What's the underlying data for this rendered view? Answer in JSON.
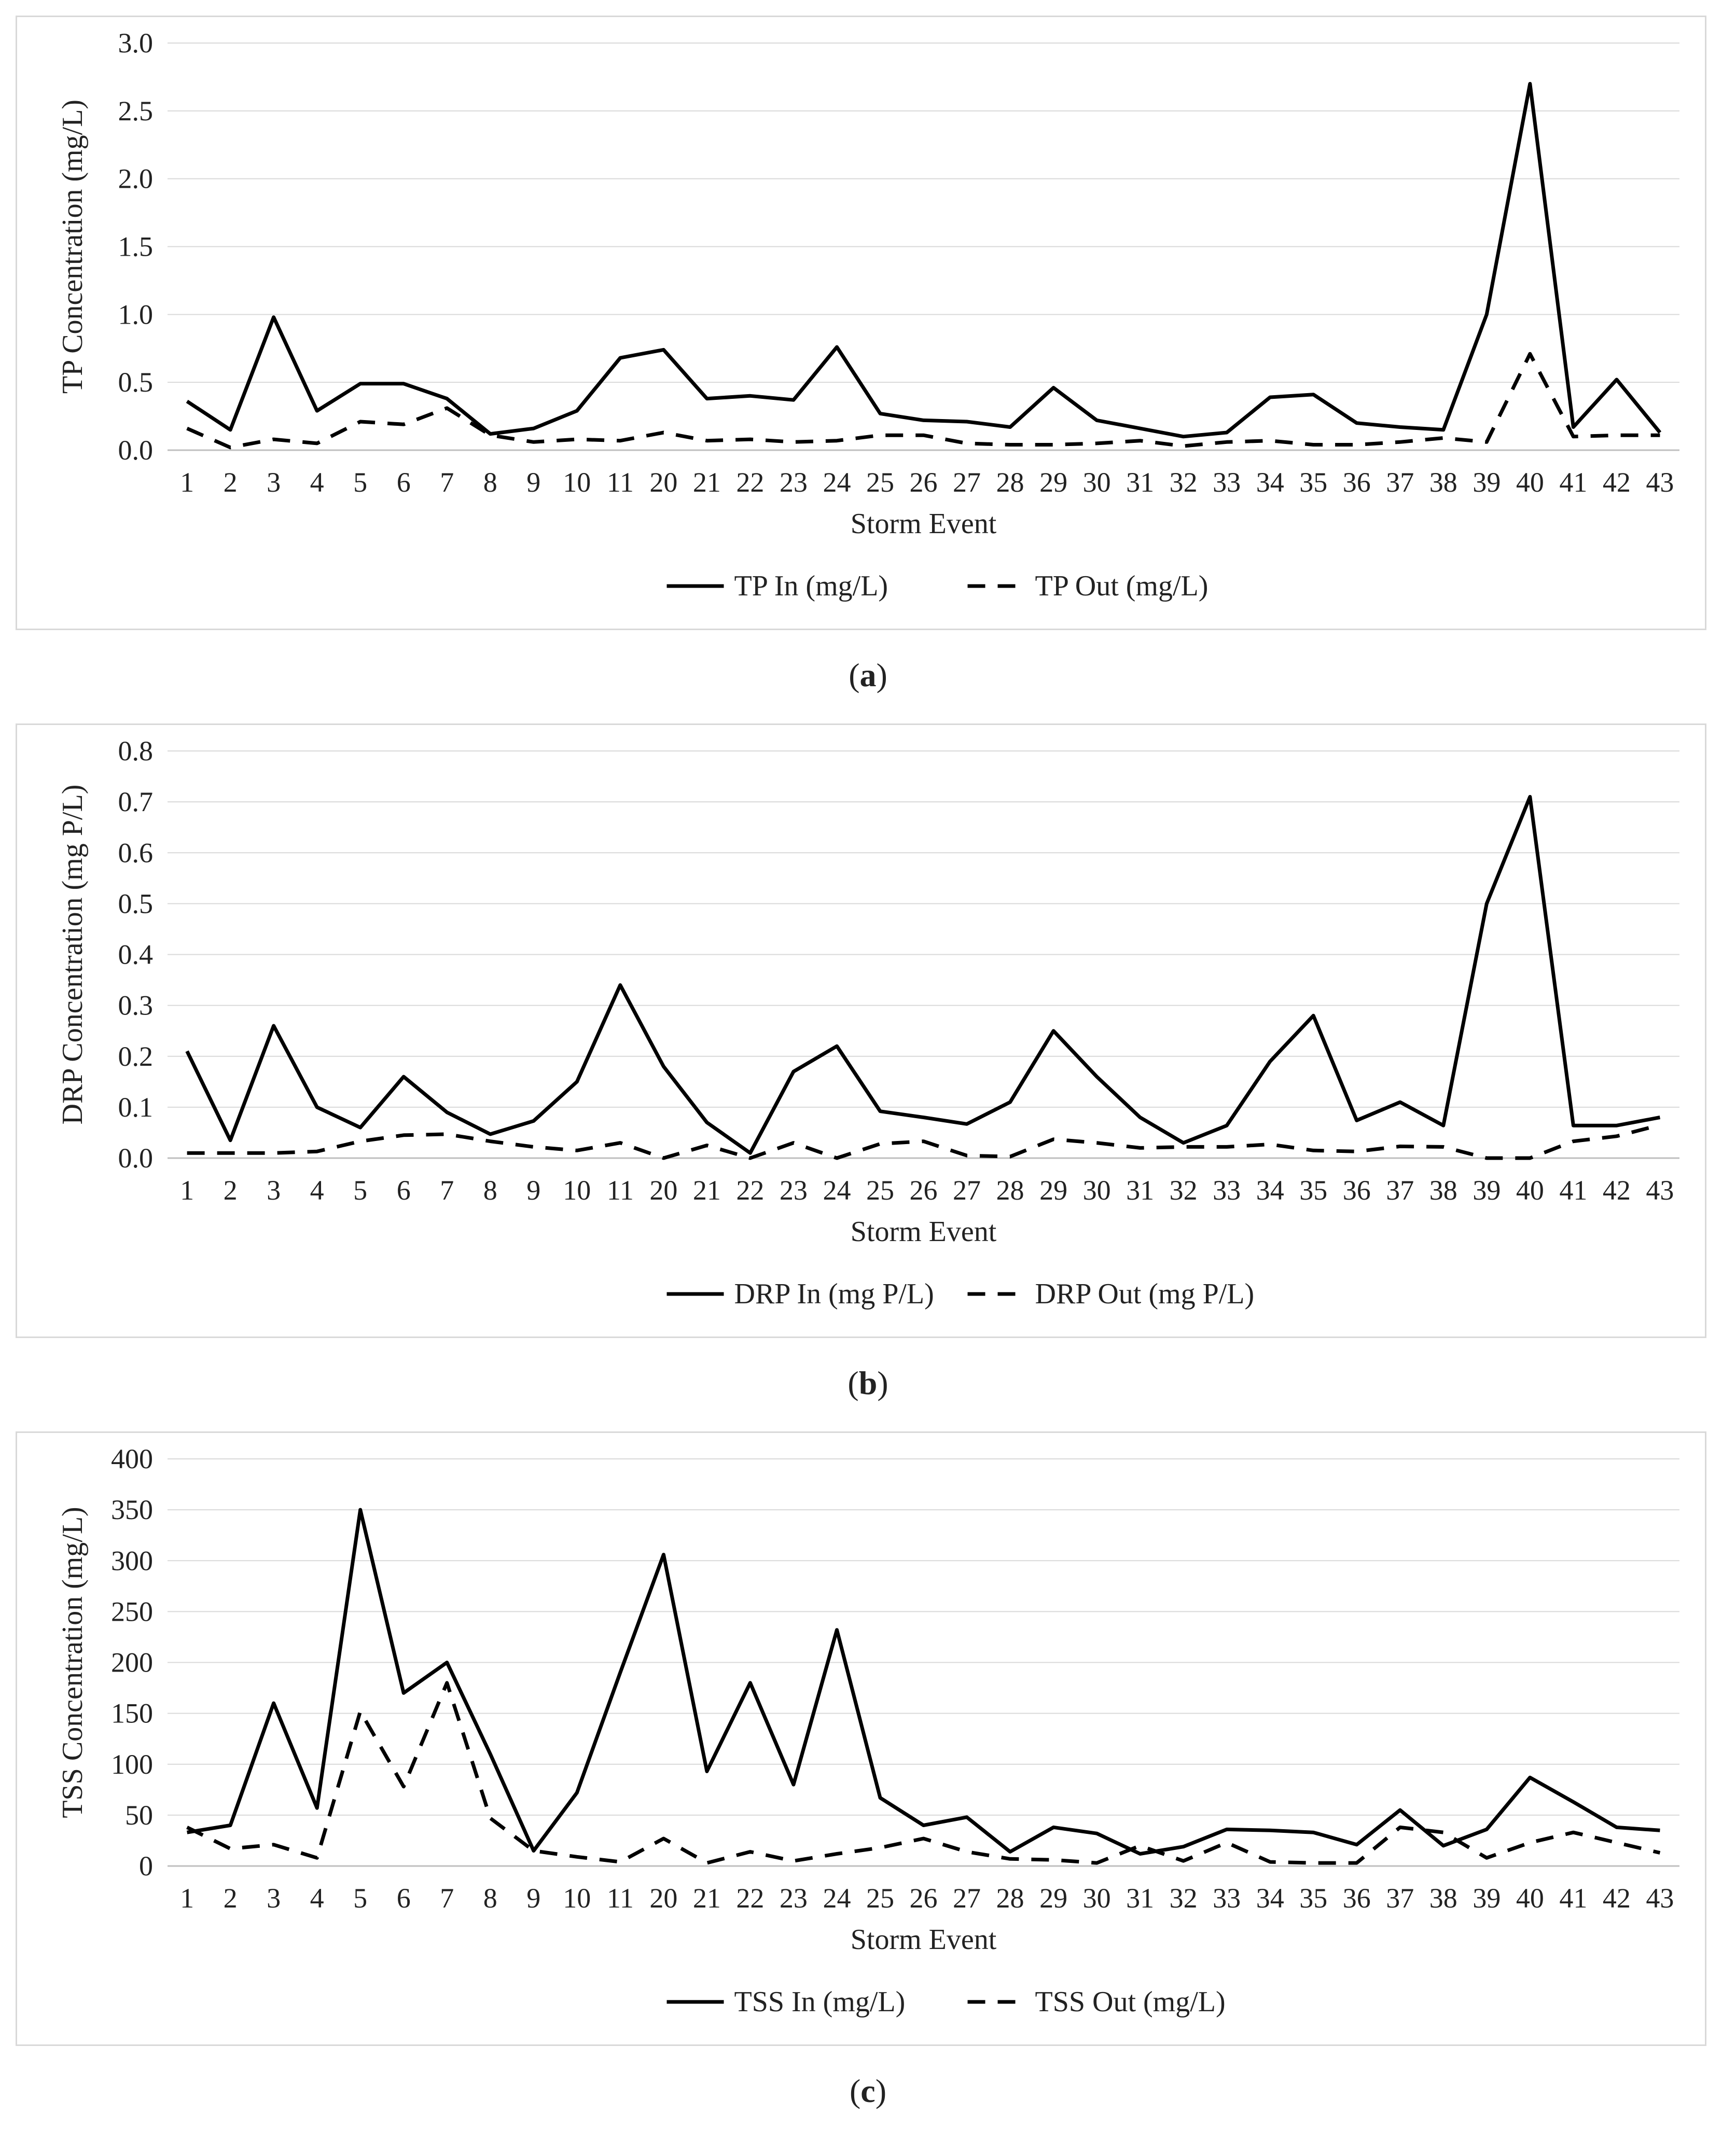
{
  "chart_data": [
    {
      "type": "line",
      "title": "",
      "xlabel": "Storm Event",
      "ylabel": "TP Concentration (mg/L)",
      "ylim": [
        0,
        3.0
      ],
      "yticks": [
        "0.0",
        "0.5",
        "1.0",
        "1.5",
        "2.0",
        "2.5",
        "3.0"
      ],
      "grid": true,
      "legend_position": "bottom",
      "categories": [
        "1",
        "2",
        "3",
        "4",
        "5",
        "6",
        "7",
        "8",
        "9",
        "10",
        "11",
        "20",
        "21",
        "22",
        "23",
        "24",
        "25",
        "26",
        "27",
        "28",
        "29",
        "30",
        "31",
        "32",
        "33",
        "34",
        "35",
        "36",
        "37",
        "38",
        "39",
        "40",
        "41",
        "42",
        "43"
      ],
      "series": [
        {
          "name": "TP In (mg/L)",
          "style": "solid",
          "values": [
            0.36,
            0.15,
            0.98,
            0.29,
            0.49,
            0.49,
            0.38,
            0.12,
            0.16,
            0.29,
            0.68,
            0.74,
            0.38,
            0.4,
            0.37,
            0.76,
            0.27,
            0.22,
            0.21,
            0.17,
            0.46,
            0.22,
            0.16,
            0.1,
            0.13,
            0.39,
            0.41,
            0.2,
            0.17,
            0.15,
            1.0,
            2.7,
            0.17,
            0.52,
            0.13
          ]
        },
        {
          "name": "TP Out (mg/L)",
          "style": "dashed",
          "values": [
            0.16,
            0.02,
            0.08,
            0.05,
            0.21,
            0.19,
            0.31,
            0.11,
            0.06,
            0.08,
            0.07,
            0.13,
            0.07,
            0.08,
            0.06,
            0.07,
            0.11,
            0.11,
            0.05,
            0.04,
            0.04,
            0.05,
            0.07,
            0.03,
            0.06,
            0.07,
            0.04,
            0.04,
            0.06,
            0.09,
            0.06,
            0.71,
            0.1,
            0.11,
            0.11
          ]
        }
      ],
      "caption": "a"
    },
    {
      "type": "line",
      "title": "",
      "xlabel": "Storm Event",
      "ylabel": "DRP Concentration (mg P/L)",
      "ylim": [
        0,
        0.8
      ],
      "yticks": [
        "0.0",
        "0.1",
        "0.2",
        "0.3",
        "0.4",
        "0.5",
        "0.6",
        "0.7",
        "0.8"
      ],
      "grid": true,
      "legend_position": "bottom",
      "categories": [
        "1",
        "2",
        "3",
        "4",
        "5",
        "6",
        "7",
        "8",
        "9",
        "10",
        "11",
        "20",
        "21",
        "22",
        "23",
        "24",
        "25",
        "26",
        "27",
        "28",
        "29",
        "30",
        "31",
        "32",
        "33",
        "34",
        "35",
        "36",
        "37",
        "38",
        "39",
        "40",
        "41",
        "42",
        "43"
      ],
      "series": [
        {
          "name": "DRP In (mg P/L)",
          "style": "solid",
          "values": [
            0.21,
            0.035,
            0.26,
            0.1,
            0.06,
            0.16,
            0.09,
            0.047,
            0.073,
            0.15,
            0.34,
            0.18,
            0.07,
            0.01,
            0.17,
            0.22,
            0.092,
            0.08,
            0.067,
            0.11,
            0.25,
            0.16,
            0.08,
            0.03,
            0.064,
            0.19,
            0.28,
            0.074,
            0.11,
            0.064,
            0.5,
            0.71,
            0.064,
            0.064,
            0.08
          ]
        },
        {
          "name": "DRP Out (mg P/L)",
          "style": "dashed",
          "values": [
            0.01,
            0.01,
            0.01,
            0.013,
            0.033,
            0.045,
            0.047,
            0.033,
            0.022,
            0.015,
            0.03,
            0.0,
            0.025,
            0.0,
            0.03,
            0.0,
            0.028,
            0.033,
            0.005,
            0.003,
            0.037,
            0.03,
            0.02,
            0.022,
            0.022,
            0.027,
            0.015,
            0.013,
            0.023,
            0.022,
            0.0,
            0.0,
            0.033,
            0.043,
            0.065
          ]
        }
      ],
      "caption": "b"
    },
    {
      "type": "line",
      "title": "",
      "xlabel": "Storm Event",
      "ylabel": "TSS Concentration (mg/L)",
      "ylim": [
        0,
        400
      ],
      "yticks": [
        "0",
        "50",
        "100",
        "150",
        "200",
        "250",
        "300",
        "350",
        "400"
      ],
      "grid": true,
      "legend_position": "bottom",
      "categories": [
        "1",
        "2",
        "3",
        "4",
        "5",
        "6",
        "7",
        "8",
        "9",
        "10",
        "11",
        "20",
        "21",
        "22",
        "23",
        "24",
        "25",
        "26",
        "27",
        "28",
        "29",
        "30",
        "31",
        "32",
        "33",
        "34",
        "35",
        "36",
        "37",
        "38",
        "39",
        "40",
        "41",
        "42",
        "43"
      ],
      "series": [
        {
          "name": "TSS In (mg/L)",
          "style": "solid",
          "values": [
            33,
            40,
            160,
            57,
            350,
            170,
            200,
            110,
            15,
            72,
            190,
            306,
            93,
            180,
            80,
            232,
            67,
            40,
            48,
            14,
            38,
            32,
            12,
            19,
            36,
            35,
            33,
            21,
            55,
            20,
            36,
            87,
            63,
            38,
            35
          ]
        },
        {
          "name": "TSS Out (mg/L)",
          "style": "dashed",
          "values": [
            38,
            17,
            21,
            8,
            152,
            78,
            180,
            47,
            15,
            9,
            4,
            27,
            3,
            14,
            5,
            12,
            18,
            27,
            14,
            7,
            6,
            3,
            20,
            5,
            23,
            4,
            3,
            3,
            38,
            33,
            8,
            23,
            33,
            23,
            13
          ]
        }
      ],
      "caption": "c"
    }
  ]
}
